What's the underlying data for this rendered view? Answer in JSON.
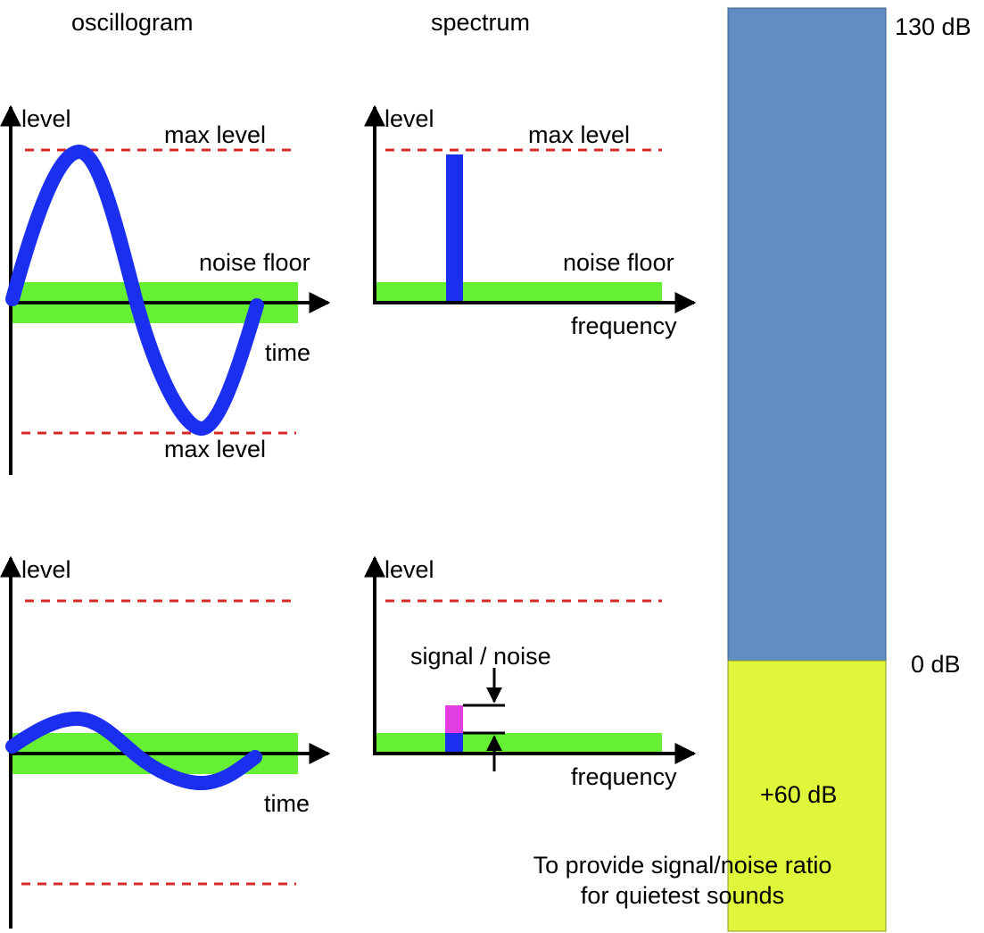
{
  "titles": {
    "oscillogram": "oscillogram",
    "spectrum": "spectrum"
  },
  "labels": {
    "level": "level",
    "max_level": "max level",
    "noise_floor": "noise floor",
    "time": "time",
    "frequency": "frequency",
    "signal_noise": "signal / noise"
  },
  "scale_bar": {
    "top_label": "130 dB",
    "zero_label": "0 dB",
    "lower_label": "+60 dB",
    "note_line1": "To provide signal/noise ratio",
    "note_line2": "for quietest sounds"
  },
  "colors": {
    "signal": "#1a2ff0",
    "noise_floor": "#66f033",
    "max_level_dash": "#d62a2a",
    "bar_upper": "#5f8dc4",
    "bar_lower": "#dff63b",
    "snr_marker": "#e23ee2",
    "axis": "#000000"
  }
}
